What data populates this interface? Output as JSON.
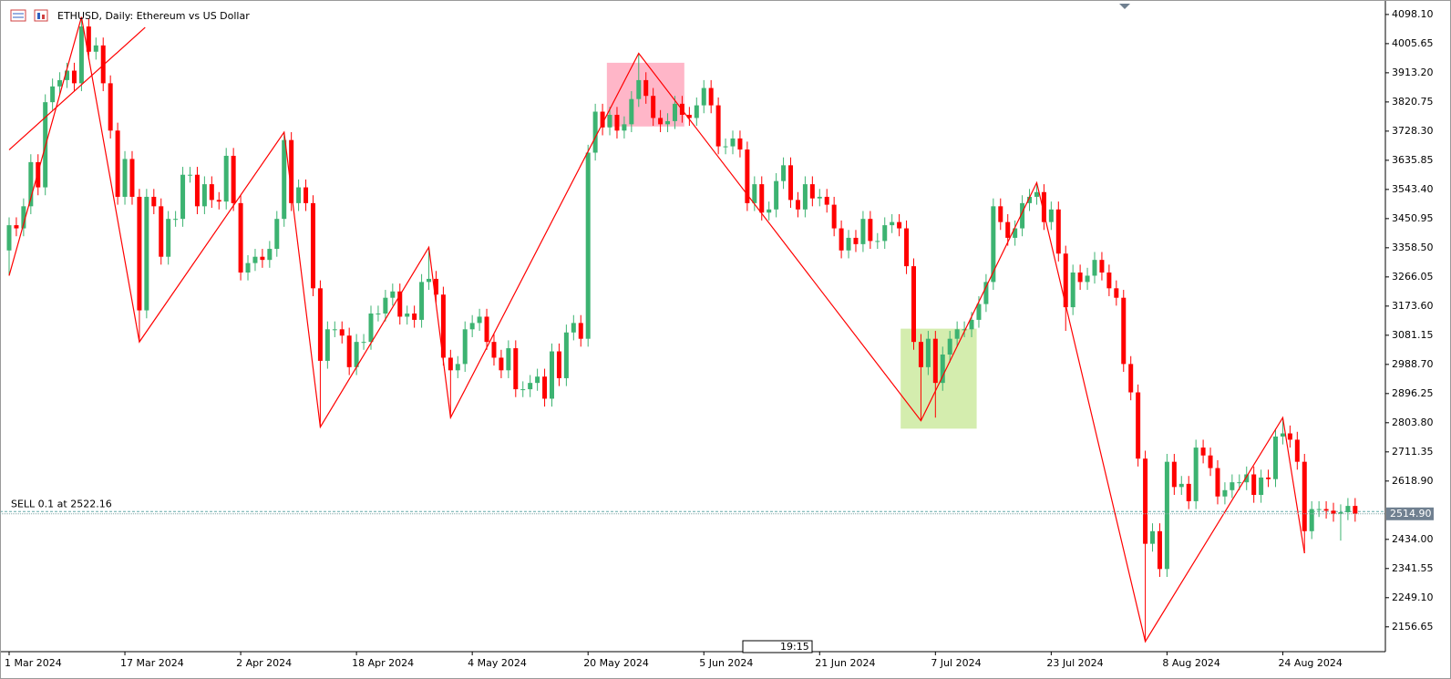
{
  "chart_data": {
    "type": "candlestick",
    "title": "ETHUSD, Daily:  Ethereum vs US Dollar",
    "up_color": "#3cb371",
    "down_color": "#ff0000",
    "ylim": [
      2078,
      4144
    ],
    "yticks": [
      {
        "value": 4098.1,
        "label": "4098.10"
      },
      {
        "value": 4005.65,
        "label": "4005.65"
      },
      {
        "value": 3913.2,
        "label": "3913.20"
      },
      {
        "value": 3820.75,
        "label": "3820.75"
      },
      {
        "value": 3728.3,
        "label": "3728.30"
      },
      {
        "value": 3635.85,
        "label": "3635.85"
      },
      {
        "value": 3543.4,
        "label": "3543.40"
      },
      {
        "value": 3450.95,
        "label": "3450.95"
      },
      {
        "value": 3358.5,
        "label": "3358.50"
      },
      {
        "value": 3266.05,
        "label": "3266.05"
      },
      {
        "value": 3173.6,
        "label": "3173.60"
      },
      {
        "value": 3081.15,
        "label": "3081.15"
      },
      {
        "value": 2988.7,
        "label": "2988.70"
      },
      {
        "value": 2896.25,
        "label": "2896.25"
      },
      {
        "value": 2803.8,
        "label": "2803.80"
      },
      {
        "value": 2711.35,
        "label": "2711.35"
      },
      {
        "value": 2618.9,
        "label": "2618.90"
      },
      {
        "value": 2434,
        "label": "2434.00"
      },
      {
        "value": 2341.55,
        "label": "2341.55"
      },
      {
        "value": 2249.1,
        "label": "2249.10"
      },
      {
        "value": 2156.65,
        "label": "2156.65"
      }
    ],
    "bid": {
      "value": 2514.9,
      "label": "2514.90"
    },
    "order": {
      "label": "SELL 0.1 at 2522.16",
      "price": 2522.16
    },
    "time_label": "19:15",
    "categories": [
      "1 Mar 2024",
      null,
      null,
      null,
      null,
      null,
      null,
      null,
      null,
      null,
      null,
      null,
      null,
      null,
      null,
      null,
      "17 Mar 2024",
      null,
      null,
      null,
      null,
      null,
      null,
      null,
      null,
      null,
      null,
      null,
      null,
      null,
      null,
      null,
      "2 Apr 2024",
      null,
      null,
      null,
      null,
      null,
      null,
      null,
      null,
      null,
      null,
      null,
      null,
      null,
      null,
      null,
      "18 Apr 2024",
      null,
      null,
      null,
      null,
      null,
      null,
      null,
      null,
      null,
      null,
      null,
      null,
      null,
      null,
      null,
      "4 May 2024",
      null,
      null,
      null,
      null,
      null,
      null,
      null,
      null,
      null,
      null,
      null,
      null,
      null,
      null,
      null,
      "20 May 2024",
      null,
      null,
      null,
      null,
      null,
      null,
      null,
      null,
      null,
      null,
      null,
      null,
      null,
      null,
      null,
      "5 Jun 2024",
      null,
      null,
      null,
      null,
      null,
      null,
      null,
      null,
      null,
      null,
      null,
      null,
      null,
      null,
      null,
      "21 Jun 2024",
      null,
      null,
      null,
      null,
      null,
      null,
      null,
      null,
      null,
      null,
      null,
      null,
      null,
      null,
      null,
      "7 Jul 2024",
      null,
      null,
      null,
      null,
      null,
      null,
      null,
      null,
      null,
      null,
      null,
      null,
      null,
      null,
      null,
      "23 Jul 2024",
      null,
      null,
      null,
      null,
      null,
      null,
      null,
      null,
      null,
      null,
      null,
      null,
      null,
      null,
      null,
      "8 Aug 2024",
      null,
      null,
      null,
      null,
      null,
      null,
      null,
      null,
      null,
      null,
      null,
      null,
      null,
      null,
      null,
      "24 Aug 2024",
      null,
      null,
      null,
      null,
      null,
      null,
      null,
      null,
      null,
      null
    ],
    "ohlc": [
      [
        3350,
        3455,
        3270,
        3430
      ],
      [
        3430,
        3455,
        3395,
        3420
      ],
      [
        3420,
        3515,
        3395,
        3490
      ],
      [
        3490,
        3655,
        3465,
        3630
      ],
      [
        3630,
        3655,
        3525,
        3550
      ],
      [
        3550,
        3845,
        3525,
        3820
      ],
      [
        3820,
        3895,
        3795,
        3870
      ],
      [
        3870,
        3915,
        3845,
        3890
      ],
      [
        3890,
        3945,
        3865,
        3920
      ],
      [
        3920,
        3945,
        3855,
        3880
      ],
      [
        3880,
        4090,
        3855,
        4060
      ],
      [
        4060,
        4085,
        3955,
        3980
      ],
      [
        3980,
        4025,
        3955,
        4000
      ],
      [
        4000,
        4025,
        3855,
        3880
      ],
      [
        3880,
        3905,
        3705,
        3730
      ],
      [
        3730,
        3755,
        3495,
        3520
      ],
      [
        3520,
        3665,
        3495,
        3640
      ],
      [
        3640,
        3665,
        3495,
        3520
      ],
      [
        3520,
        3545,
        3060,
        3160
      ],
      [
        3160,
        3545,
        3135,
        3520
      ],
      [
        3520,
        3545,
        3465,
        3490
      ],
      [
        3490,
        3515,
        3305,
        3330
      ],
      [
        3330,
        3475,
        3305,
        3450
      ],
      [
        3450,
        3475,
        3425,
        3450
      ],
      [
        3450,
        3615,
        3425,
        3590
      ],
      [
        3590,
        3615,
        3565,
        3590
      ],
      [
        3590,
        3615,
        3465,
        3490
      ],
      [
        3490,
        3585,
        3465,
        3560
      ],
      [
        3560,
        3585,
        3485,
        3510
      ],
      [
        3510,
        3535,
        3480,
        3505
      ],
      [
        3505,
        3675,
        3480,
        3650
      ],
      [
        3650,
        3675,
        3475,
        3500
      ],
      [
        3500,
        3525,
        3255,
        3280
      ],
      [
        3280,
        3335,
        3255,
        3310
      ],
      [
        3310,
        3355,
        3285,
        3330
      ],
      [
        3330,
        3355,
        3295,
        3320
      ],
      [
        3320,
        3380,
        3295,
        3355
      ],
      [
        3355,
        3475,
        3330,
        3450
      ],
      [
        3450,
        3725,
        3425,
        3700
      ],
      [
        3700,
        3725,
        3475,
        3500
      ],
      [
        3500,
        3575,
        3475,
        3550
      ],
      [
        3550,
        3575,
        3475,
        3500
      ],
      [
        3500,
        3525,
        3205,
        3230
      ],
      [
        3230,
        3255,
        2790,
        3000
      ],
      [
        3000,
        3125,
        2975,
        3100
      ],
      [
        3100,
        3125,
        3075,
        3100
      ],
      [
        3100,
        3125,
        3055,
        3080
      ],
      [
        3080,
        3105,
        2955,
        2980
      ],
      [
        2980,
        3085,
        2955,
        3060
      ],
      [
        3060,
        3085,
        3035,
        3060
      ],
      [
        3060,
        3175,
        3035,
        3150
      ],
      [
        3150,
        3175,
        3125,
        3150
      ],
      [
        3150,
        3225,
        3125,
        3200
      ],
      [
        3200,
        3245,
        3175,
        3220
      ],
      [
        3220,
        3245,
        3115,
        3140
      ],
      [
        3140,
        3175,
        3115,
        3150
      ],
      [
        3150,
        3175,
        3105,
        3130
      ],
      [
        3130,
        3275,
        3105,
        3250
      ],
      [
        3250,
        3360,
        3225,
        3260
      ],
      [
        3260,
        3285,
        3185,
        3210
      ],
      [
        3210,
        3235,
        2985,
        3010
      ],
      [
        3010,
        3035,
        2820,
        2970
      ],
      [
        2970,
        3015,
        2945,
        2990
      ],
      [
        2990,
        3125,
        2965,
        3100
      ],
      [
        3100,
        3145,
        3075,
        3120
      ],
      [
        3120,
        3165,
        3095,
        3140
      ],
      [
        3140,
        3165,
        3035,
        3060
      ],
      [
        3060,
        3085,
        2985,
        3010
      ],
      [
        3010,
        3035,
        2945,
        2970
      ],
      [
        2970,
        3065,
        2945,
        3040
      ],
      [
        3040,
        3065,
        2885,
        2910
      ],
      [
        2910,
        2935,
        2885,
        2910
      ],
      [
        2910,
        2955,
        2885,
        2930
      ],
      [
        2930,
        2975,
        2905,
        2950
      ],
      [
        2950,
        2975,
        2855,
        2880
      ],
      [
        2880,
        3055,
        2855,
        3030
      ],
      [
        3030,
        3055,
        2920,
        2945
      ],
      [
        2945,
        3115,
        2920,
        3090
      ],
      [
        3090,
        3145,
        3065,
        3120
      ],
      [
        3120,
        3145,
        3045,
        3070
      ],
      [
        3070,
        3685,
        3045,
        3660
      ],
      [
        3660,
        3815,
        3635,
        3790
      ],
      [
        3790,
        3815,
        3715,
        3740
      ],
      [
        3740,
        3805,
        3715,
        3780
      ],
      [
        3780,
        3805,
        3705,
        3730
      ],
      [
        3730,
        3775,
        3705,
        3750
      ],
      [
        3750,
        3855,
        3725,
        3830
      ],
      [
        3830,
        3975,
        3805,
        3890
      ],
      [
        3890,
        3915,
        3815,
        3840
      ],
      [
        3840,
        3865,
        3745,
        3770
      ],
      [
        3770,
        3795,
        3725,
        3750
      ],
      [
        3750,
        3785,
        3725,
        3760
      ],
      [
        3760,
        3840,
        3735,
        3815
      ],
      [
        3815,
        3840,
        3755,
        3780
      ],
      [
        3780,
        3805,
        3745,
        3770
      ],
      [
        3770,
        3835,
        3745,
        3810
      ],
      [
        3810,
        3890,
        3785,
        3865
      ],
      [
        3865,
        3890,
        3785,
        3810
      ],
      [
        3810,
        3835,
        3655,
        3680
      ],
      [
        3680,
        3705,
        3655,
        3680
      ],
      [
        3680,
        3730,
        3655,
        3705
      ],
      [
        3705,
        3730,
        3645,
        3670
      ],
      [
        3670,
        3695,
        3475,
        3500
      ],
      [
        3500,
        3585,
        3475,
        3560
      ],
      [
        3560,
        3585,
        3445,
        3470
      ],
      [
        3470,
        3505,
        3445,
        3480
      ],
      [
        3480,
        3595,
        3455,
        3570
      ],
      [
        3570,
        3645,
        3545,
        3620
      ],
      [
        3620,
        3645,
        3485,
        3510
      ],
      [
        3510,
        3535,
        3455,
        3480
      ],
      [
        3480,
        3585,
        3455,
        3560
      ],
      [
        3560,
        3585,
        3490,
        3515
      ],
      [
        3515,
        3545,
        3490,
        3520
      ],
      [
        3520,
        3545,
        3470,
        3495
      ],
      [
        3495,
        3520,
        3395,
        3420
      ],
      [
        3420,
        3445,
        3325,
        3350
      ],
      [
        3350,
        3415,
        3325,
        3390
      ],
      [
        3390,
        3415,
        3345,
        3370
      ],
      [
        3370,
        3475,
        3345,
        3450
      ],
      [
        3450,
        3475,
        3355,
        3380
      ],
      [
        3380,
        3405,
        3355,
        3380
      ],
      [
        3380,
        3455,
        3355,
        3430
      ],
      [
        3430,
        3465,
        3405,
        3440
      ],
      [
        3440,
        3465,
        3395,
        3420
      ],
      [
        3420,
        3445,
        3275,
        3300
      ],
      [
        3300,
        3325,
        3035,
        3060
      ],
      [
        3060,
        3085,
        2810,
        2980
      ],
      [
        2980,
        3095,
        2955,
        3070
      ],
      [
        3070,
        3095,
        2820,
        2930
      ],
      [
        2930,
        3045,
        2905,
        3020
      ],
      [
        3020,
        3095,
        2995,
        3070
      ],
      [
        3070,
        3125,
        3045,
        3100
      ],
      [
        3100,
        3125,
        3075,
        3100
      ],
      [
        3100,
        3155,
        3075,
        3130
      ],
      [
        3130,
        3205,
        3105,
        3180
      ],
      [
        3180,
        3275,
        3155,
        3250
      ],
      [
        3250,
        3515,
        3225,
        3490
      ],
      [
        3490,
        3515,
        3415,
        3440
      ],
      [
        3440,
        3465,
        3365,
        3390
      ],
      [
        3390,
        3445,
        3365,
        3420
      ],
      [
        3420,
        3525,
        3395,
        3500
      ],
      [
        3500,
        3545,
        3475,
        3520
      ],
      [
        3520,
        3565,
        3495,
        3535
      ],
      [
        3535,
        3560,
        3415,
        3440
      ],
      [
        3440,
        3505,
        3415,
        3480
      ],
      [
        3480,
        3505,
        3315,
        3340
      ],
      [
        3340,
        3365,
        3095,
        3170
      ],
      [
        3170,
        3305,
        3145,
        3280
      ],
      [
        3280,
        3305,
        3225,
        3250
      ],
      [
        3250,
        3295,
        3225,
        3270
      ],
      [
        3270,
        3345,
        3245,
        3320
      ],
      [
        3320,
        3345,
        3255,
        3280
      ],
      [
        3280,
        3305,
        3205,
        3230
      ],
      [
        3230,
        3255,
        3175,
        3200
      ],
      [
        3200,
        3225,
        2965,
        2990
      ],
      [
        2990,
        3015,
        2875,
        2900
      ],
      [
        2900,
        2925,
        2665,
        2690
      ],
      [
        2690,
        2715,
        2110,
        2420
      ],
      [
        2420,
        2485,
        2395,
        2460
      ],
      [
        2460,
        2485,
        2315,
        2340
      ],
      [
        2340,
        2705,
        2315,
        2680
      ],
      [
        2680,
        2705,
        2575,
        2600
      ],
      [
        2600,
        2635,
        2575,
        2610
      ],
      [
        2610,
        2635,
        2530,
        2555
      ],
      [
        2555,
        2750,
        2530,
        2725
      ],
      [
        2725,
        2750,
        2675,
        2700
      ],
      [
        2700,
        2725,
        2635,
        2660
      ],
      [
        2660,
        2685,
        2545,
        2570
      ],
      [
        2570,
        2615,
        2545,
        2590
      ],
      [
        2590,
        2640,
        2565,
        2615
      ],
      [
        2615,
        2640,
        2590,
        2615
      ],
      [
        2615,
        2665,
        2590,
        2640
      ],
      [
        2640,
        2665,
        2550,
        2575
      ],
      [
        2575,
        2655,
        2550,
        2630
      ],
      [
        2630,
        2655,
        2600,
        2625
      ],
      [
        2625,
        2785,
        2600,
        2760
      ],
      [
        2760,
        2820,
        2735,
        2770
      ],
      [
        2770,
        2795,
        2725,
        2750
      ],
      [
        2750,
        2775,
        2655,
        2680
      ],
      [
        2680,
        2705,
        2390,
        2460
      ],
      [
        2460,
        2555,
        2435,
        2530
      ],
      [
        2530,
        2555,
        2505,
        2530
      ],
      [
        2530,
        2555,
        2500,
        2525
      ],
      [
        2525,
        2550,
        2490,
        2515
      ],
      [
        2515,
        2545,
        2430,
        2520
      ],
      [
        2520,
        2565,
        2495,
        2540
      ],
      [
        2540,
        2565,
        2490,
        2515
      ]
    ],
    "zigzag": {
      "color": "#ff0000",
      "x": [
        0,
        10,
        18,
        38,
        43,
        58,
        61,
        87,
        126,
        142,
        157,
        176,
        179
      ],
      "values": [
        3270,
        4090,
        3060,
        3725,
        2790,
        3360,
        2820,
        3975,
        2810,
        3565,
        2110,
        2820,
        2390
      ]
    },
    "trendline": {
      "color": "#ff0000",
      "x": [
        0,
        18.8
      ],
      "values": [
        3669,
        4057
      ]
    },
    "rectangles": [
      {
        "color": "#ffb6c8",
        "x": [
          82.6,
          93.3
        ],
        "values": [
          3945,
          3743
        ]
      },
      {
        "color": "#d4edae",
        "x": [
          123.2,
          133.7
        ],
        "values": [
          3102,
          2785
        ]
      }
    ]
  }
}
